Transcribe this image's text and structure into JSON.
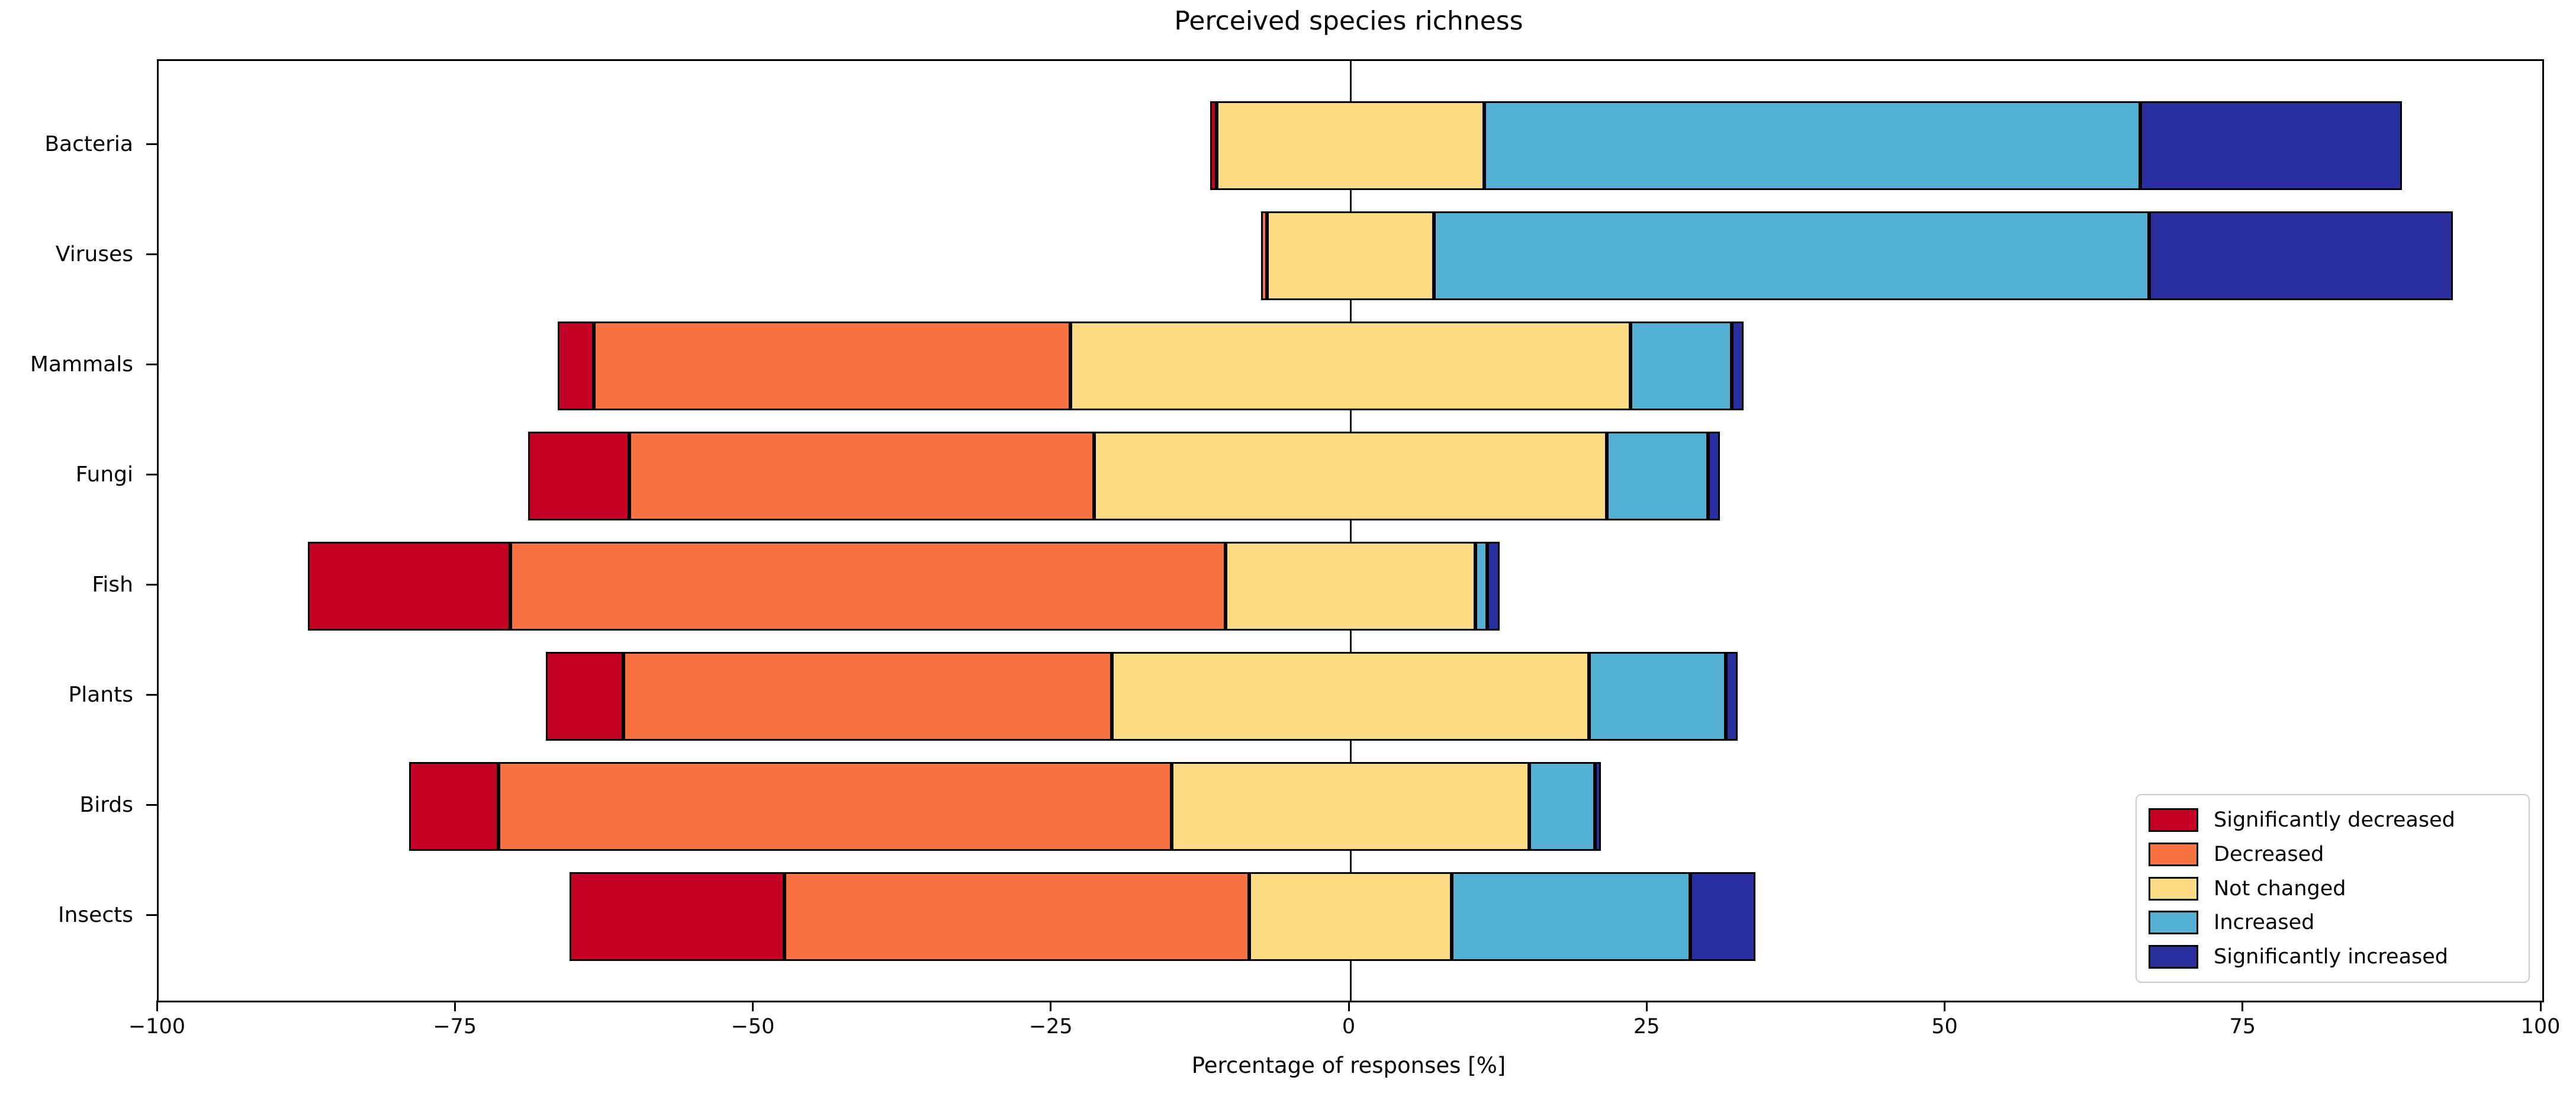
{
  "title": "Perceived species richness",
  "xlabel": "Percentage of responses [%]",
  "chart_data": {
    "type": "bar",
    "variant": "diverging-stacked-horizontal",
    "title": "Perceived species richness",
    "xlabel": "Percentage of responses [%]",
    "xlim": [
      -100,
      100
    ],
    "x_ticks": [
      -100,
      -75,
      -50,
      -25,
      0,
      25,
      50,
      75,
      100
    ],
    "x_tick_labels": [
      "−100",
      "−75",
      "−50",
      "−25",
      "0",
      "25",
      "50",
      "75",
      "100"
    ],
    "grid": false,
    "zero_line": true,
    "neutral_centered_series": "Not changed",
    "categories": [
      "Bacteria",
      "Viruses",
      "Mammals",
      "Fungi",
      "Fish",
      "Plants",
      "Birds",
      "Insects"
    ],
    "series": [
      {
        "name": "Significantly decreased",
        "color": "#c40225",
        "values": [
          0.5,
          0,
          3,
          8.5,
          17,
          6.5,
          7.5,
          18
        ]
      },
      {
        "name": "Decreased",
        "color": "#f97342",
        "values": [
          0,
          0.5,
          40,
          39,
          60,
          41,
          56.5,
          39
        ]
      },
      {
        "name": "Not changed",
        "color": "#fbdc85",
        "values": [
          22.5,
          14,
          47,
          43,
          21,
          40,
          30,
          17
        ]
      },
      {
        "name": "Increased",
        "color": "#54b1d4",
        "values": [
          55,
          60,
          8.5,
          8.5,
          1,
          11.5,
          5.5,
          20
        ]
      },
      {
        "name": "Significantly increased",
        "color": "#2a2f9f",
        "values": [
          22,
          25.5,
          1,
          1,
          1,
          1,
          0.5,
          5.5
        ]
      }
    ],
    "legend_position": "lower right"
  },
  "legend": {
    "items": [
      {
        "label": "Significantly decreased",
        "color": "#c40225"
      },
      {
        "label": "Decreased",
        "color": "#f97342"
      },
      {
        "label": "Not changed",
        "color": "#fbdc85"
      },
      {
        "label": "Increased",
        "color": "#54b1d4"
      },
      {
        "label": "Significantly increased",
        "color": "#2a2f9f"
      }
    ]
  },
  "style": {
    "bar_edge_color": "#000000",
    "axis_color": "#000000",
    "background": "#ffffff"
  }
}
